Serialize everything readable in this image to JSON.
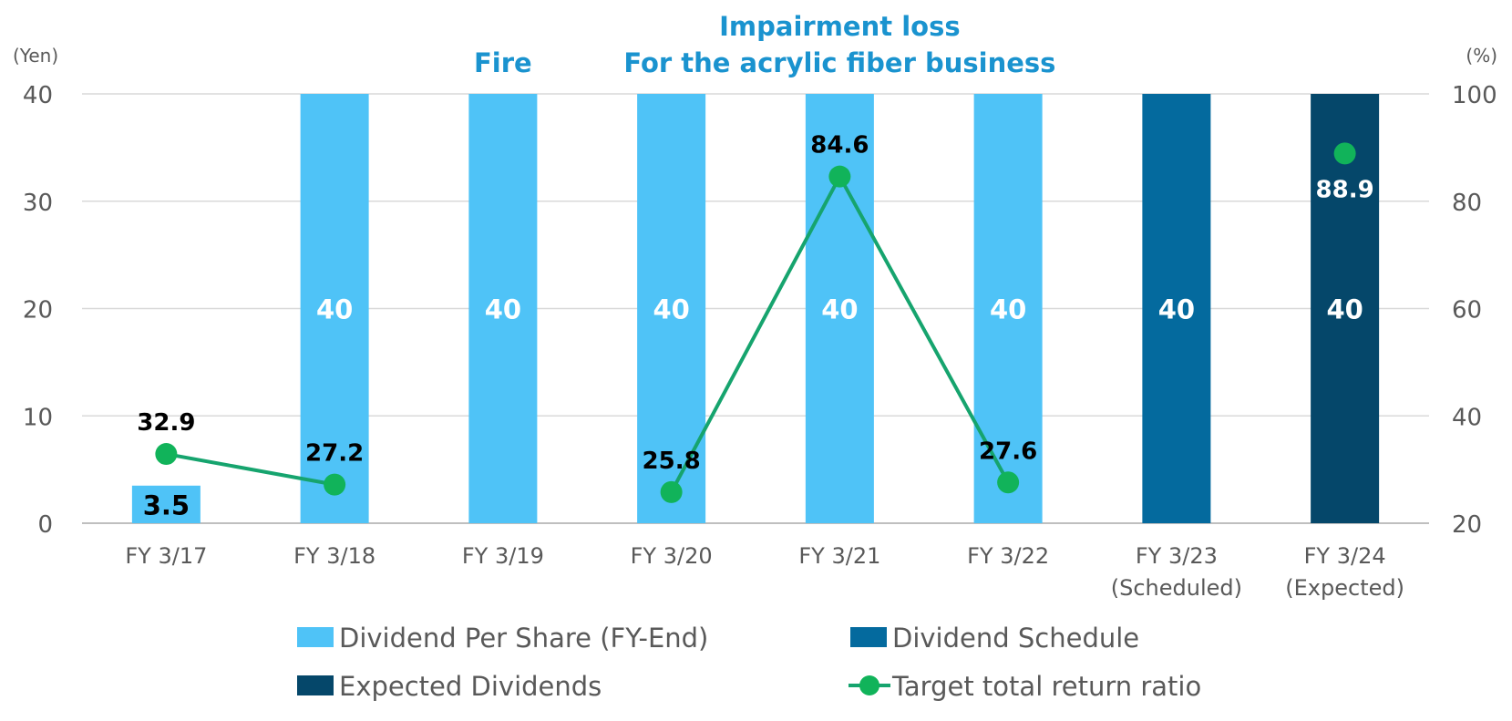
{
  "chart_data": {
    "type": "bar",
    "categories": [
      [
        "FY 3/17"
      ],
      [
        "FY 3/18"
      ],
      [
        "FY 3/19"
      ],
      [
        "FY 3/20"
      ],
      [
        "FY 3/21"
      ],
      [
        "FY 3/22"
      ],
      [
        "FY 3/23",
        "(Scheduled)"
      ],
      [
        "FY 3/24",
        "(Expected)"
      ]
    ],
    "y_left": {
      "unit": "(Yen)",
      "range": [
        0,
        40
      ],
      "ticks": [
        "0",
        "10",
        "20",
        "30",
        "40"
      ]
    },
    "y_right": {
      "unit": "(%)",
      "range": [
        20,
        100
      ],
      "ticks": [
        "20",
        "40",
        "60",
        "80",
        "100"
      ]
    },
    "grid": true,
    "legend_position": "bottom",
    "series": [
      {
        "name": "Dividend Per Share (FY-End)",
        "kind": "bar",
        "axis": "left",
        "color": "#4fc3f7",
        "label_color": "#ffffff",
        "values": [
          3.5,
          40,
          40,
          40,
          40,
          40,
          null,
          null
        ],
        "labels": [
          "3.5",
          "40",
          "40",
          "40",
          "40",
          "40",
          "",
          ""
        ]
      },
      {
        "name": "Dividend Schedule",
        "kind": "bar",
        "axis": "left",
        "color": "#046a9e",
        "label_color": "#ffffff",
        "values": [
          null,
          null,
          null,
          null,
          null,
          null,
          40,
          null
        ],
        "labels": [
          "",
          "",
          "",
          "",
          "",
          "",
          "40",
          ""
        ]
      },
      {
        "name": "Expected Dividends",
        "kind": "bar",
        "axis": "left",
        "color": "#05476a",
        "label_color": "#ffffff",
        "values": [
          null,
          null,
          null,
          null,
          null,
          null,
          null,
          40
        ],
        "labels": [
          "",
          "",
          "",
          "",
          "",
          "",
          "",
          "40"
        ]
      },
      {
        "name": "Target total return ratio",
        "kind": "line",
        "axis": "right",
        "color": "#11b35a",
        "line_color": "#16a46e",
        "values": [
          32.9,
          27.2,
          null,
          25.8,
          84.6,
          27.6,
          null,
          88.9
        ],
        "labels": [
          "32.9",
          "27.2",
          "",
          "25.8",
          "84.6",
          "27.6",
          "",
          "88.9"
        ]
      }
    ],
    "annotations": [
      {
        "lines": [
          "Fire"
        ],
        "category_index": 2
      },
      {
        "lines": [
          "Impairment loss",
          "For the acrylic fiber business"
        ],
        "category_index": 4
      }
    ]
  }
}
